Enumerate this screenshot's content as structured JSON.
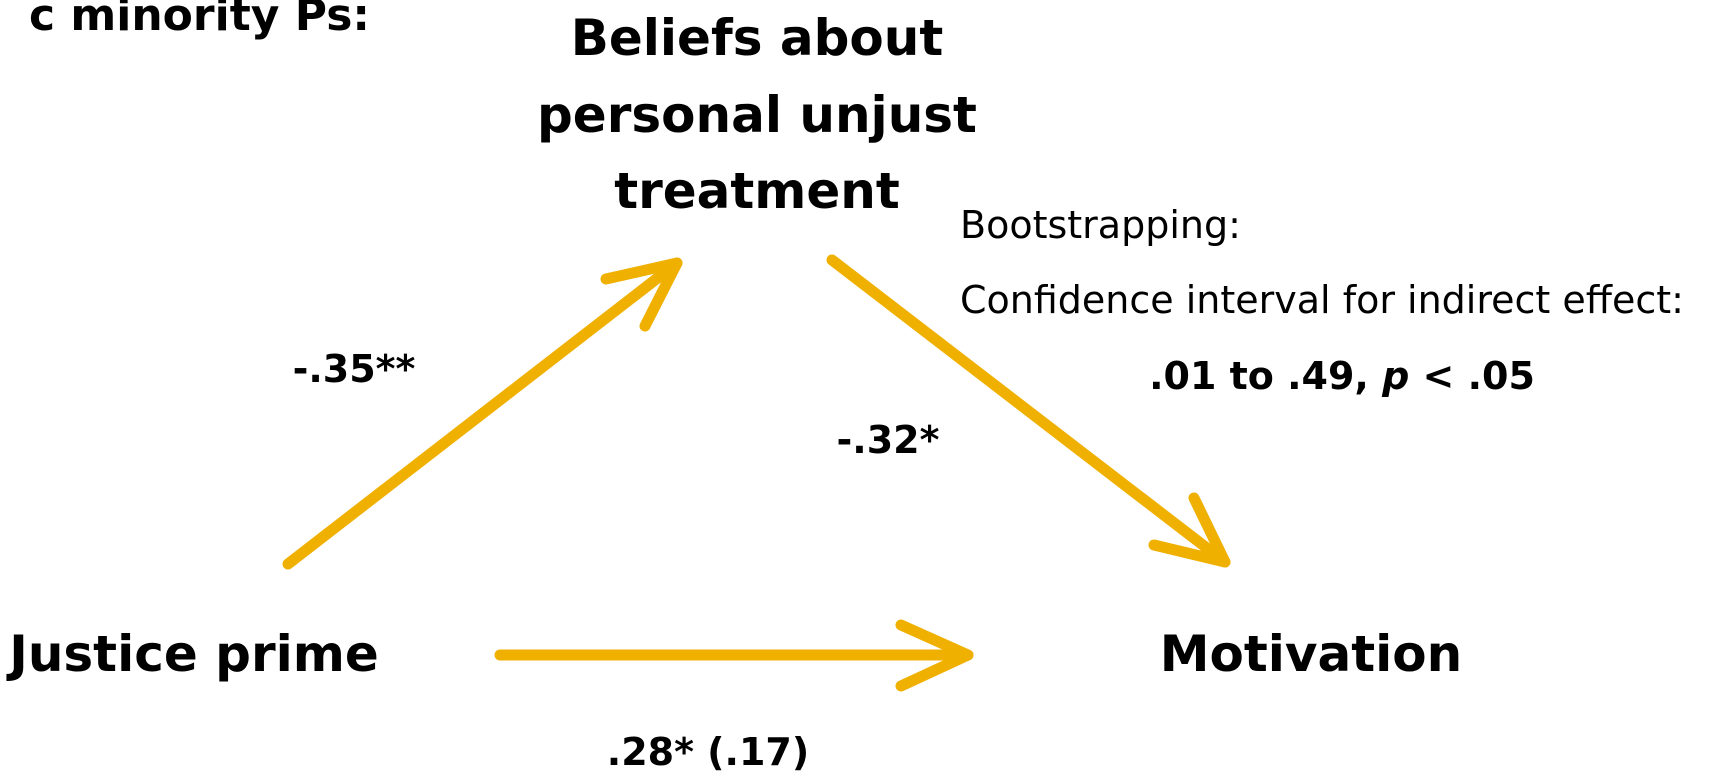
{
  "title": "c minority Ps:",
  "nodes": [
    {
      "label": [
        "Beliefs about",
        "personal unjust",
        "treatment"
      ]
    },
    {
      "label": "Justice prime"
    },
    {
      "label": "Motivation"
    }
  ],
  "edges": [
    {
      "label": "-.35**"
    },
    {
      "label": "-.32*"
    },
    {
      "label": ".28* (.17)"
    }
  ],
  "note": {
    "lines": [
      "Bootstrapping:",
      "Confidence interval for indirect effect:"
    ],
    "result": [
      ".01 to .49, ",
      "p",
      " < .05"
    ]
  }
}
